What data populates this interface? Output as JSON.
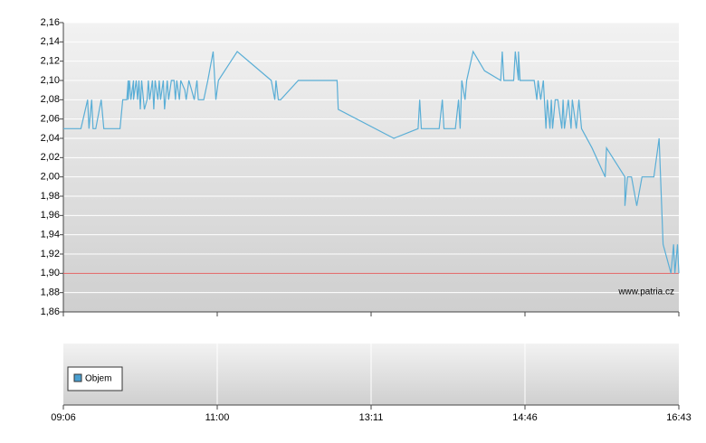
{
  "chart_data": {
    "type": "line",
    "x": [
      "09:06",
      "09:19",
      "09:24",
      "09:25",
      "09:27",
      "09:28",
      "09:30",
      "09:34",
      "09:36",
      "09:48",
      "09:50",
      "09:53",
      "09:54",
      "09:54",
      "09:55",
      "09:56",
      "09:58",
      "09:58",
      "10:00",
      "10:01",
      "10:02",
      "10:03",
      "10:04",
      "10:06",
      "10:08",
      "10:09",
      "10:10",
      "10:12",
      "10:13",
      "10:14",
      "10:16",
      "10:17",
      "10:18",
      "10:20",
      "10:21",
      "10:23",
      "10:24",
      "10:26",
      "10:28",
      "10:29",
      "10:30",
      "10:32",
      "10:33",
      "10:36",
      "10:37",
      "10:39",
      "10:41",
      "10:43",
      "10:45",
      "10:46",
      "10:50",
      "10:53",
      "10:57",
      "10:59",
      "11:01",
      "11:17",
      "11:46",
      "11:49",
      "11:50",
      "11:52",
      "11:54",
      "12:09",
      "12:42",
      "12:43",
      "13:25",
      "13:40",
      "13:41",
      "13:42",
      "13:53",
      "13:55",
      "13:56",
      "14:03",
      "14:05",
      "14:06",
      "14:07",
      "14:09",
      "14:10",
      "14:14",
      "14:21",
      "14:31",
      "14:32",
      "14:33",
      "14:39",
      "14:40",
      "14:42",
      "14:42",
      "14:43",
      "14:53",
      "14:55",
      "14:56",
      "14:58",
      "15:00",
      "15:02",
      "15:03",
      "15:05",
      "15:06",
      "15:07",
      "15:09",
      "15:11",
      "15:14",
      "15:15",
      "15:16",
      "15:19",
      "15:21",
      "15:22",
      "15:25",
      "15:27",
      "15:29",
      "15:37",
      "15:47",
      "15:48",
      "16:02",
      "16:02",
      "16:04",
      "16:07",
      "16:11",
      "16:15",
      "16:24",
      "16:28",
      "16:31",
      "16:37",
      "16:39",
      "16:40",
      "16:42",
      "16:43"
    ],
    "series": [
      {
        "color": "#5aaed6",
        "values": [
          2.05,
          2.05,
          2.08,
          2.05,
          2.08,
          2.05,
          2.05,
          2.08,
          2.05,
          2.05,
          2.08,
          2.08,
          2.1,
          2.08,
          2.1,
          2.08,
          2.1,
          2.08,
          2.1,
          2.08,
          2.1,
          2.07,
          2.1,
          2.07,
          2.08,
          2.1,
          2.08,
          2.1,
          2.07,
          2.1,
          2.08,
          2.1,
          2.08,
          2.1,
          2.07,
          2.1,
          2.08,
          2.1,
          2.1,
          2.08,
          2.1,
          2.08,
          2.1,
          2.09,
          2.08,
          2.1,
          2.09,
          2.08,
          2.1,
          2.08,
          2.08,
          2.1,
          2.13,
          2.08,
          2.1,
          2.13,
          2.1,
          2.08,
          2.1,
          2.08,
          2.08,
          2.1,
          2.1,
          2.07,
          2.04,
          2.05,
          2.08,
          2.05,
          2.05,
          2.08,
          2.05,
          2.05,
          2.08,
          2.05,
          2.1,
          2.08,
          2.1,
          2.13,
          2.11,
          2.1,
          2.13,
          2.1,
          2.1,
          2.13,
          2.1,
          2.13,
          2.1,
          2.1,
          2.08,
          2.1,
          2.08,
          2.1,
          2.05,
          2.08,
          2.05,
          2.08,
          2.05,
          2.08,
          2.08,
          2.05,
          2.08,
          2.05,
          2.08,
          2.05,
          2.08,
          2.05,
          2.08,
          2.05,
          2.03,
          2.0,
          2.03,
          2.0,
          1.97,
          2.0,
          2.0,
          1.97,
          2.0,
          2.0,
          2.04,
          1.93,
          1.9,
          1.93,
          1.9,
          1.93,
          1.9
        ]
      }
    ],
    "xticks": [
      "09:06",
      "11:00",
      "13:11",
      "14:46",
      "16:43"
    ],
    "ylim": [
      1.86,
      2.16
    ],
    "yticks": [
      {
        "value": 1.86,
        "label": "1,86"
      },
      {
        "value": 1.88,
        "label": "1,88"
      },
      {
        "value": 1.9,
        "label": "1,90"
      },
      {
        "value": 1.92,
        "label": "1,92"
      },
      {
        "value": 1.94,
        "label": "1,94"
      },
      {
        "value": 1.96,
        "label": "1,96"
      },
      {
        "value": 1.98,
        "label": "1,98"
      },
      {
        "value": 2.0,
        "label": "2,00"
      },
      {
        "value": 2.02,
        "label": "2,02"
      },
      {
        "value": 2.04,
        "label": "2,04"
      },
      {
        "value": 2.06,
        "label": "2,06"
      },
      {
        "value": 2.08,
        "label": "2,08"
      },
      {
        "value": 2.1,
        "label": "2,10"
      },
      {
        "value": 2.12,
        "label": "2,12"
      },
      {
        "value": 2.14,
        "label": "2,14"
      },
      {
        "value": 2.16,
        "label": "2,16"
      }
    ],
    "grid": true,
    "reference_line": {
      "value": 1.9,
      "color": "#e06060"
    },
    "watermark": "www.patria.cz",
    "volume_legend": {
      "name": "Objem",
      "color": "#4a9fd0"
    }
  }
}
